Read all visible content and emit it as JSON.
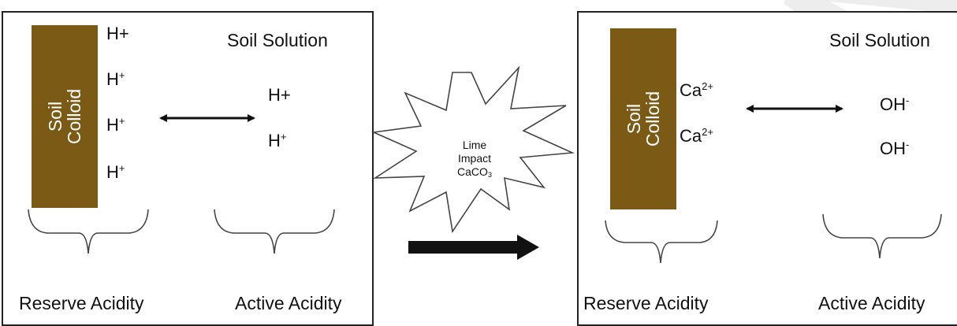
{
  "before": {
    "colloid_label_line1": "Soil",
    "colloid_label_line2": "Colloid",
    "solution_title": "Soil Solution",
    "adsorbed_ions": [
      "H+",
      "H",
      "H",
      "H"
    ],
    "adsorbed_superscripts": [
      "",
      "+",
      "+",
      "+"
    ],
    "solution_ions": [
      "H+",
      "H"
    ],
    "solution_superscripts": [
      "",
      "+"
    ],
    "reserve_caption": "Reserve Acidity",
    "active_caption": "Active Acidity"
  },
  "lime": {
    "line1": "Lime",
    "line2": "Impact",
    "line3": "CaCO",
    "line3_sub": "3"
  },
  "after": {
    "colloid_label_line1": "Soil",
    "colloid_label_line2": "Colloid",
    "solution_title": "Soil Solution",
    "adsorbed_ions": [
      "Ca",
      "Ca"
    ],
    "adsorbed_superscripts": [
      "2+",
      "2+"
    ],
    "solution_ions": [
      "OH",
      "OH"
    ],
    "solution_superscripts": [
      "-",
      "-"
    ],
    "reserve_caption": "Reserve Acidity",
    "active_caption": "Active Acidity"
  },
  "watermark": "ON",
  "colors": {
    "colloid": "#7b5a16",
    "watermark": "#ececec"
  }
}
